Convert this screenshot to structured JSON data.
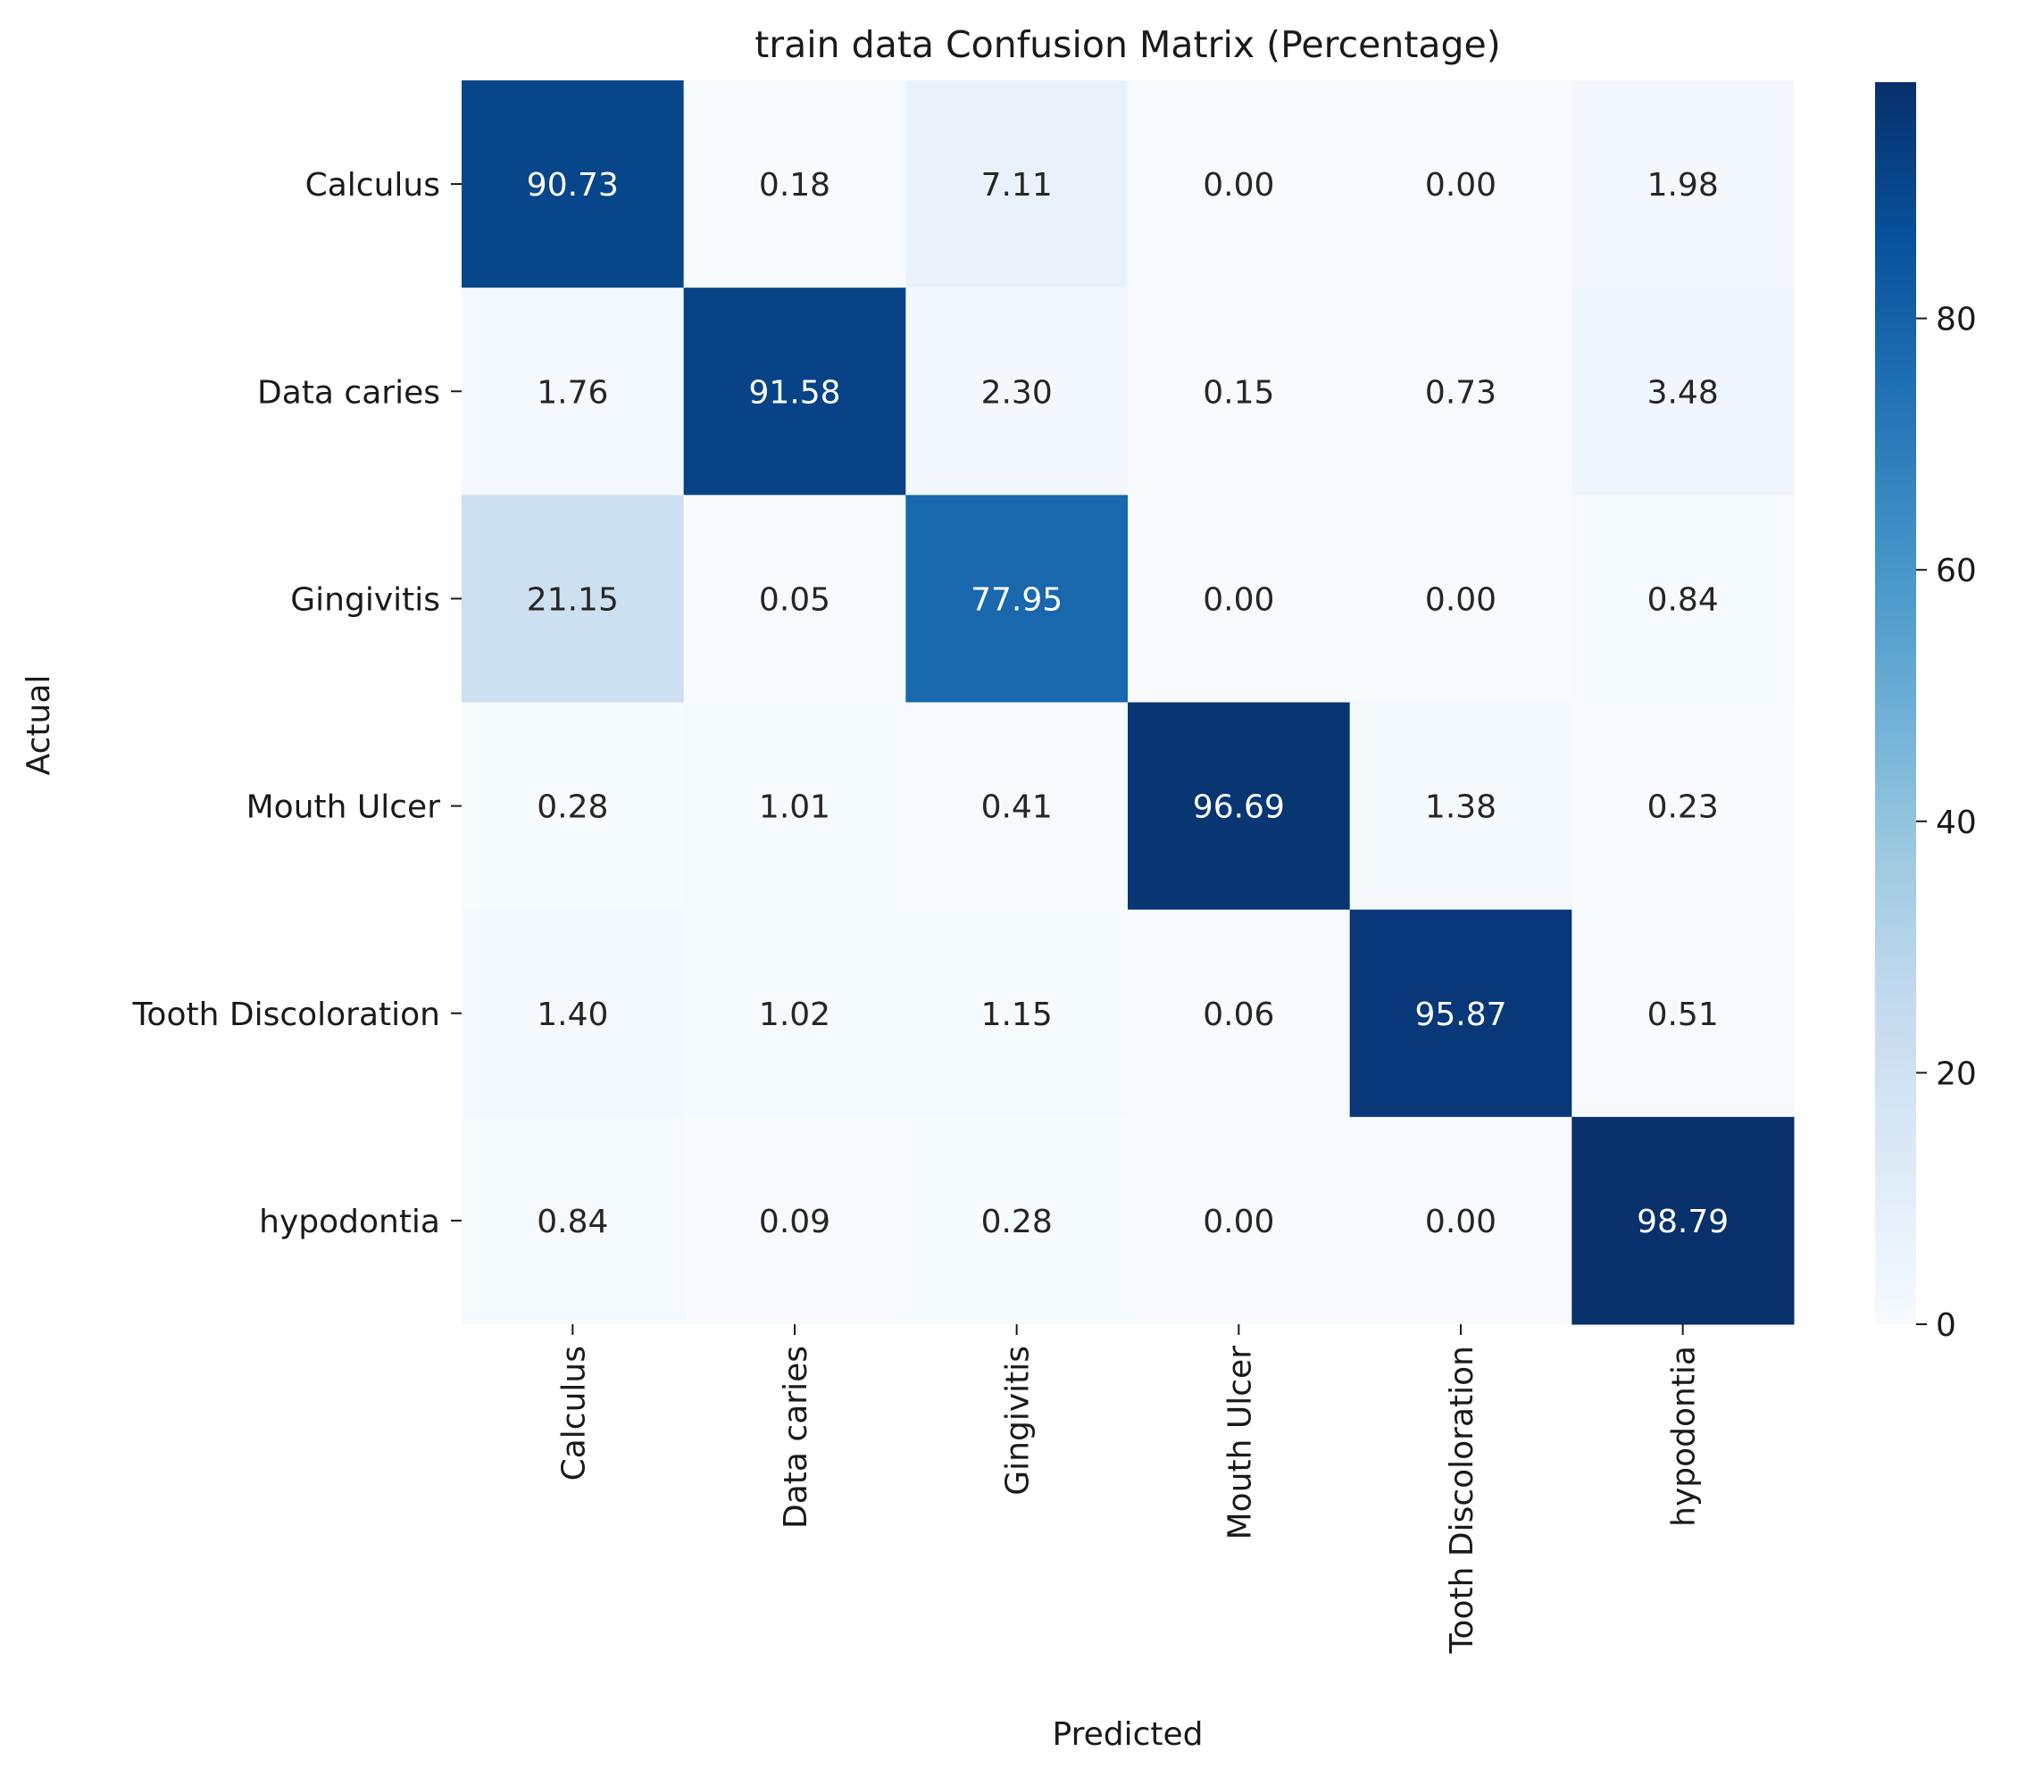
{
  "chart_data": {
    "type": "heatmap",
    "title": "train data Confusion Matrix (Percentage)",
    "xlabel": "Predicted",
    "ylabel": "Actual",
    "x_categories": [
      "Calculus",
      "Data caries",
      "Gingivitis",
      "Mouth Ulcer",
      "Tooth Discoloration",
      "hypodontia"
    ],
    "y_categories": [
      "Calculus",
      "Data caries",
      "Gingivitis",
      "Mouth Ulcer",
      "Tooth Discoloration",
      "hypodontia"
    ],
    "values": [
      [
        90.73,
        0.18,
        7.11,
        0.0,
        0.0,
        1.98
      ],
      [
        1.76,
        91.58,
        2.3,
        0.15,
        0.73,
        3.48
      ],
      [
        21.15,
        0.05,
        77.95,
        0.0,
        0.0,
        0.84
      ],
      [
        0.28,
        1.01,
        0.41,
        96.69,
        1.38,
        0.23
      ],
      [
        1.4,
        1.02,
        1.15,
        0.06,
        95.87,
        0.51
      ],
      [
        0.84,
        0.09,
        0.28,
        0.0,
        0.0,
        98.79
      ]
    ],
    "cell_labels": [
      [
        "90.73",
        "0.18",
        "7.11",
        "0.00",
        "0.00",
        "1.98"
      ],
      [
        "1.76",
        "91.58",
        "2.30",
        "0.15",
        "0.73",
        "3.48"
      ],
      [
        "21.15",
        "0.05",
        "77.95",
        "0.00",
        "0.00",
        "0.84"
      ],
      [
        "0.28",
        "1.01",
        "0.41",
        "96.69",
        "1.38",
        "0.23"
      ],
      [
        "1.40",
        "1.02",
        "1.15",
        "0.06",
        "95.87",
        "0.51"
      ],
      [
        "0.84",
        "0.09",
        "0.28",
        "0.00",
        "0.00",
        "98.79"
      ]
    ],
    "colormap": "Blues",
    "colorbar": {
      "vmin": 0,
      "vmax": 98.79,
      "ticks": [
        0,
        20,
        40,
        60,
        80
      ],
      "tick_labels": [
        "0",
        "20",
        "40",
        "60",
        "80"
      ]
    },
    "grid": false
  }
}
